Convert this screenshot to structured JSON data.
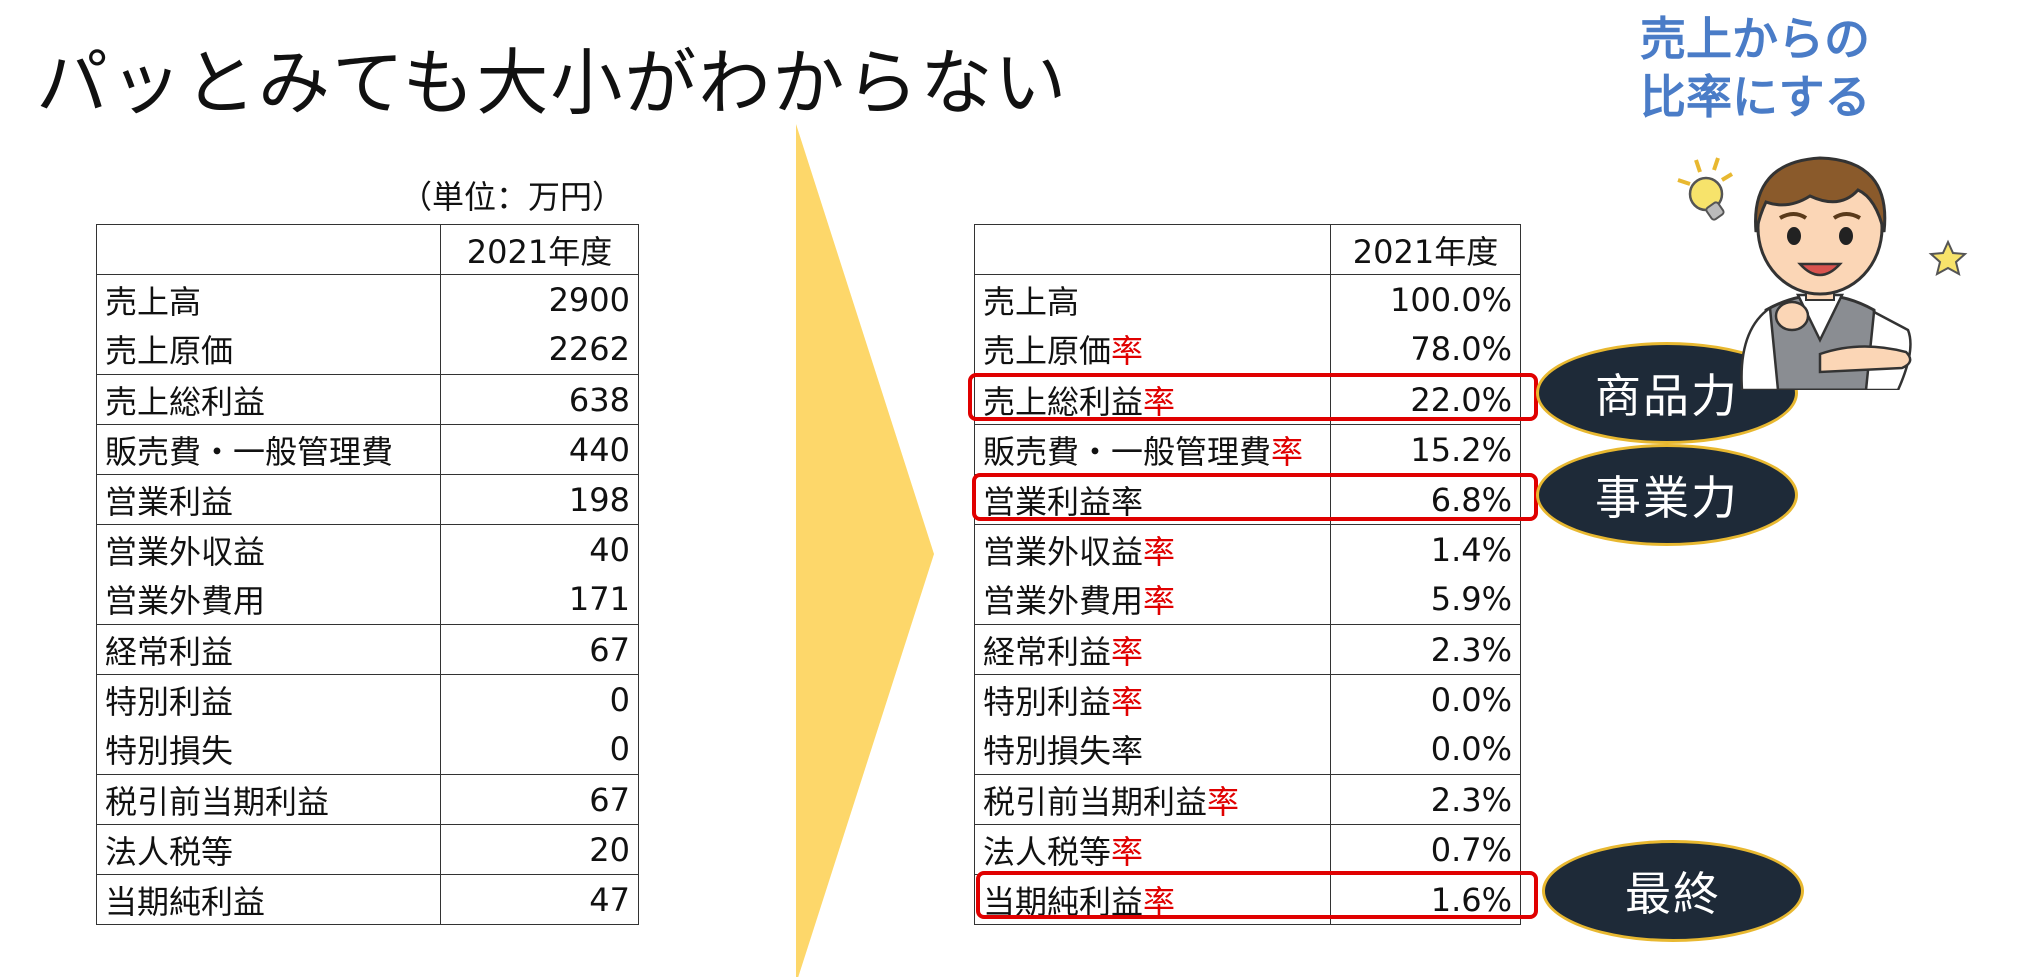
{
  "title": "パッとみても大小がわからない",
  "unit_note": "（単位：万円）",
  "hint": {
    "line1": "売上からの",
    "line2": "比率にする"
  },
  "left_table": {
    "header": "2021年度",
    "rows": [
      {
        "label": "売上高",
        "value": "2900"
      },
      {
        "label": "売上原価",
        "value": "2262"
      },
      {
        "label": "売上総利益",
        "value": "638"
      },
      {
        "label": "販売費・一般管理費",
        "value": "440"
      },
      {
        "label": "営業利益",
        "value": "198"
      },
      {
        "label": "営業外収益",
        "value": "40"
      },
      {
        "label": "営業外費用",
        "value": "171"
      },
      {
        "label": "経常利益",
        "value": "67"
      },
      {
        "label": "特別利益",
        "value": "0"
      },
      {
        "label": "特別損失",
        "value": "0"
      },
      {
        "label": "税引前当期利益",
        "value": "67"
      },
      {
        "label": "法人税等",
        "value": "20"
      },
      {
        "label": "当期純利益",
        "value": "47"
      }
    ]
  },
  "right_table": {
    "header": "2021年度",
    "rate_suffix": "率",
    "rows": [
      {
        "label": "売上高",
        "suffix": "",
        "value": "100.0%"
      },
      {
        "label": "売上原価",
        "suffix": "率",
        "value": "78.0%"
      },
      {
        "label": "売上総利益",
        "suffix": "率",
        "value": "22.0%"
      },
      {
        "label": "販売費・一般管理費",
        "suffix": "率",
        "value": "15.2%"
      },
      {
        "label": "営業利益率",
        "suffix": "",
        "value": "6.8%"
      },
      {
        "label": "営業外収益",
        "suffix": "率",
        "value": "1.4%"
      },
      {
        "label": "営業外費用",
        "suffix": "率",
        "value": "5.9%"
      },
      {
        "label": "経常利益",
        "suffix": "率",
        "value": "2.3%"
      },
      {
        "label": "特別利益",
        "suffix": "率",
        "value": "0.0%"
      },
      {
        "label": "特別損失率",
        "suffix": "",
        "value": "0.0%"
      },
      {
        "label": "税引前当期利益",
        "suffix": "率",
        "value": "2.3%"
      },
      {
        "label": "法人税等",
        "suffix": "率",
        "value": "0.7%"
      },
      {
        "label": "当期純利益",
        "suffix": "率",
        "value": "1.6%"
      }
    ]
  },
  "callouts": {
    "product_power": "商品力",
    "business_power": "事業力",
    "final": "最終"
  },
  "colors": {
    "rate_red": "#e00000",
    "arrow_yellow": "#fdd76a",
    "callout_bg": "#1e2a38",
    "callout_border": "#e8b830",
    "hint_blue": "#4a7cc7"
  },
  "icons": {
    "arrow": "chevron-right-arrow",
    "character": "thinking-man-illustration",
    "bulb": "lightbulb-icon",
    "star": "star-icon"
  }
}
